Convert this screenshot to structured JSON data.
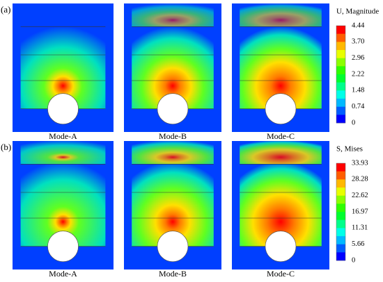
{
  "panels": [
    {
      "label": "(a)",
      "legend_title": "U, Magnitude",
      "legend_ticks": [
        "4.44",
        "3.70",
        "2.96",
        "2.22",
        "1.48",
        "0.74",
        "0"
      ],
      "modes": [
        "Mode-A",
        "Mode-B",
        "Mode-C"
      ]
    },
    {
      "label": "(b)",
      "legend_title": "S, Mises",
      "legend_ticks": [
        "33.93",
        "28.28",
        "22.62",
        "16.97",
        "11.31",
        "5.66",
        "0"
      ],
      "modes": [
        "Mode-A",
        "Mode-B",
        "Mode-C"
      ]
    }
  ]
}
